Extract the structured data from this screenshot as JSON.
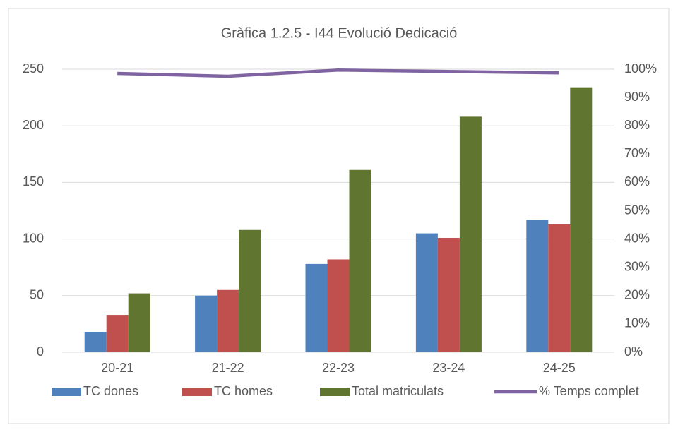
{
  "chart_data": {
    "type": "bar",
    "title": "Gràfica 1.2.5 - I44 Evolució Dedicació",
    "categories": [
      "20-21",
      "21-22",
      "22-23",
      "23-24",
      "24-25"
    ],
    "series": [
      {
        "name": "TC dones",
        "color": "#4f81bd",
        "values": [
          18,
          50,
          78,
          105,
          117
        ]
      },
      {
        "name": "TC homes",
        "color": "#c0504d",
        "values": [
          33,
          55,
          82,
          101,
          113
        ]
      },
      {
        "name": "Total matriculats",
        "color": "#5f7530",
        "values": [
          52,
          108,
          161,
          208,
          234
        ]
      },
      {
        "name": "% Temps complet",
        "color": "#8064a2",
        "type": "line",
        "axis": "y2",
        "values": [
          98.5,
          97.5,
          99.7,
          99.2,
          98.7
        ]
      }
    ],
    "ylim": [
      0,
      250
    ],
    "yticks": [
      0,
      50,
      100,
      150,
      200,
      250
    ],
    "y2lim": [
      0,
      100
    ],
    "y2ticks": [
      {
        "value": 0,
        "label": "0%"
      },
      {
        "value": 10,
        "label": "10%"
      },
      {
        "value": 20,
        "label": "20%"
      },
      {
        "value": 30,
        "label": "30%"
      },
      {
        "value": 40,
        "label": "40%"
      },
      {
        "value": 50,
        "label": "50%"
      },
      {
        "value": 60,
        "label": "60%"
      },
      {
        "value": 70,
        "label": "70%"
      },
      {
        "value": 80,
        "label": "80%"
      },
      {
        "value": 90,
        "label": "90%"
      },
      {
        "value": 100,
        "label": "100%"
      }
    ],
    "grid": true,
    "legend": "bottom"
  }
}
